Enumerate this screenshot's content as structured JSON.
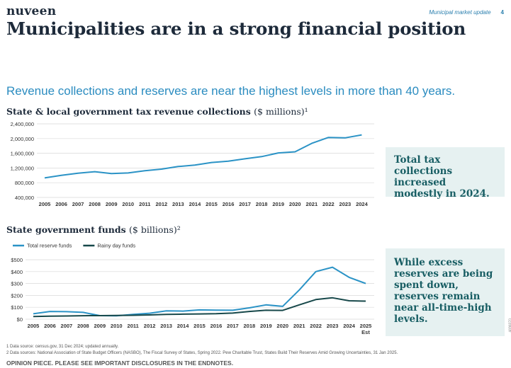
{
  "header": {
    "logo": "nuveen",
    "section": "Municipal market update",
    "page_number": "4"
  },
  "title": "Municipalities are in a strong financial position",
  "subtitle": "Revenue collections and reserves are near the highest levels in more than 40 years.",
  "chart_data": [
    {
      "type": "line",
      "title": "State & local government tax revenue collections",
      "unit": "($ millions)¹",
      "x": [
        "2005",
        "2006",
        "2007",
        "2008",
        "2009",
        "2010",
        "2011",
        "2012",
        "2013",
        "2014",
        "2015",
        "2016",
        "2017",
        "2018",
        "2019",
        "2020",
        "2021",
        "2022",
        "2023",
        "2024"
      ],
      "yticks": [
        "400,000",
        "800,000",
        "1,200,000",
        "1,600,000",
        "2,000,000",
        "2,400,000"
      ],
      "ylim": [
        400000,
        2400000
      ],
      "series": [
        {
          "values": [
            930000,
            1000000,
            1060000,
            1100000,
            1050000,
            1065000,
            1125000,
            1170000,
            1240000,
            1280000,
            1350000,
            1385000,
            1450000,
            1510000,
            1610000,
            1640000,
            1870000,
            2030000,
            2020000,
            2100000
          ],
          "color": "#2b93c6"
        }
      ],
      "grid": "horizontal"
    },
    {
      "type": "line",
      "title": "State government funds",
      "unit": "($ billions)²",
      "x": [
        "2005",
        "2006",
        "2007",
        "2008",
        "2009",
        "2010",
        "2011",
        "2012",
        "2013",
        "2014",
        "2015",
        "2016",
        "2017",
        "2018",
        "2019",
        "2020",
        "2021",
        "2022",
        "2023",
        "2024",
        "2025"
      ],
      "x_sublabels": {
        "2025": "Est"
      },
      "yticks": [
        "$0",
        "$100",
        "$200",
        "$300",
        "$400",
        "$500"
      ],
      "ylim": [
        0,
        500
      ],
      "legend_position": "top-left",
      "series": [
        {
          "name": "Total reserve funds",
          "values": [
            45,
            65,
            63,
            57,
            30,
            28,
            40,
            50,
            70,
            68,
            78,
            76,
            75,
            95,
            120,
            108,
            245,
            400,
            437,
            352,
            300
          ],
          "color": "#2b93c6"
        },
        {
          "name": "Rainy day funds",
          "values": [
            22,
            25,
            27,
            29,
            30,
            31,
            33,
            36,
            40,
            42,
            44,
            46,
            51,
            65,
            75,
            74,
            120,
            165,
            180,
            155,
            152
          ],
          "color": "#17484a"
        }
      ],
      "grid": "horizontal"
    }
  ],
  "callouts": {
    "revenue": "Total tax collections increased modestly in 2024.",
    "reserves": "While excess reserves are being spent down, reserves remain near all-time-high levels."
  },
  "footnotes": {
    "note1": "1 Data source: census.gov, 31 Dec 2024; updated annually.",
    "note2": "2 Data sources: National Association of State Budget Officers (NASBO), The Fiscal Survey of States, Spring 2022. Pew Charitable Trust, States Build Their Reserves Amid Growing Uncertainties, 31 Jan 2025."
  },
  "disclaimer": "OPINION PIECE. PLEASE SEE IMPORTANT DISCLOSURES IN THE ENDNOTES.",
  "side_code": "4696070"
}
